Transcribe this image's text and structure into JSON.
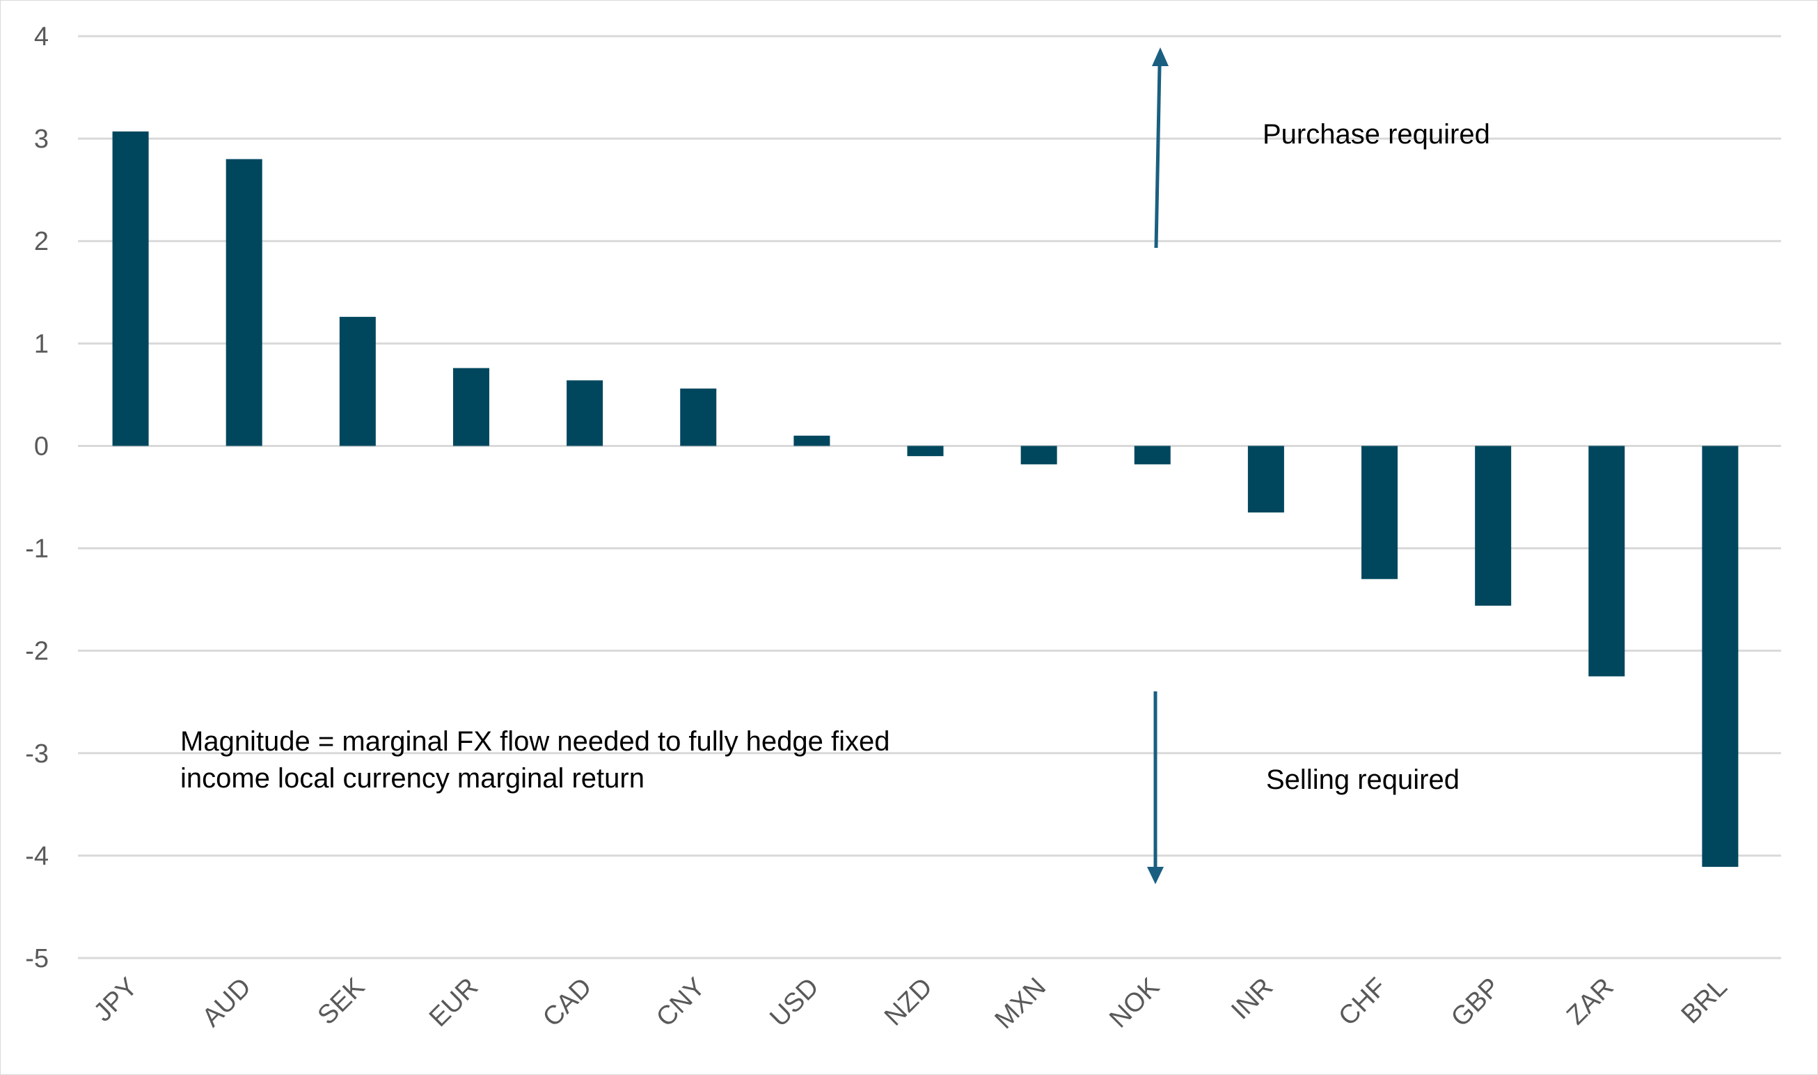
{
  "chart_data": {
    "type": "bar",
    "title": "",
    "xlabel": "",
    "ylabel": "",
    "ylim": [
      -5,
      4
    ],
    "yticks": [
      4,
      3,
      2,
      1,
      0,
      -1,
      -2,
      -3,
      -4,
      -5
    ],
    "grid": true,
    "categories": [
      "JPY",
      "AUD",
      "SEK",
      "EUR",
      "CAD",
      "CNY",
      "USD",
      "NZD",
      "MXN",
      "NOK",
      "INR",
      "CHF",
      "GBP",
      "ZAR",
      "BRL"
    ],
    "values": [
      3.07,
      2.8,
      1.26,
      0.76,
      0.64,
      0.56,
      0.1,
      -0.1,
      -0.18,
      -0.18,
      -0.65,
      -1.3,
      -1.56,
      -2.25,
      -4.11
    ],
    "bar_color": "#00475e",
    "arrow_color": "#1a5f80",
    "annotations": {
      "purchase": "Purchase required",
      "selling": "Selling required",
      "note_line1": "Magnitude = marginal FX flow needed to fully hedge fixed",
      "note_line2": "income local currency marginal return"
    }
  }
}
